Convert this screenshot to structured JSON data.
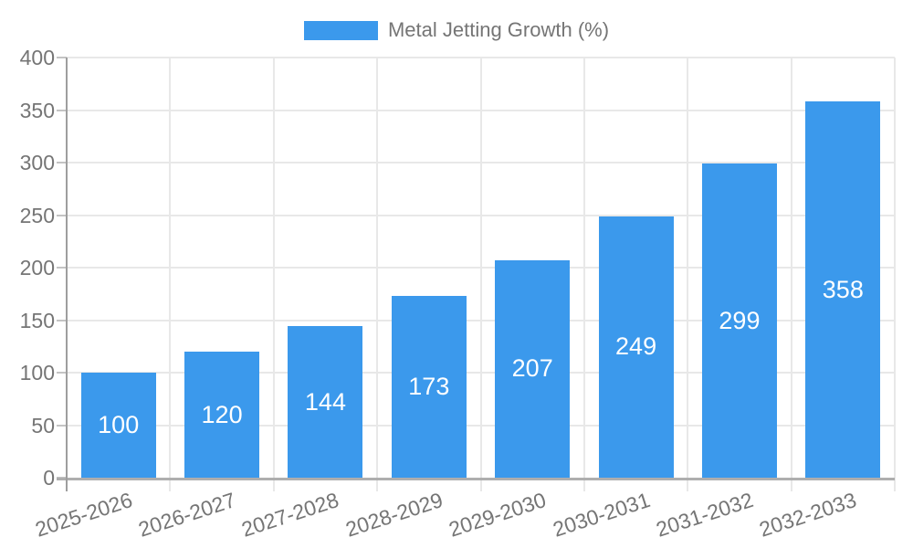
{
  "legend": {
    "label": "Metal Jetting Growth (%)"
  },
  "colors": {
    "bar": "#3b99ec",
    "axis_text": "#757575",
    "value_label": "#ffffff",
    "gridline": "#e8e8e8",
    "tick": "#c4c4c4",
    "axis_line_y": "#9e9e9e",
    "axis_line_x": "#aeaeae",
    "background": "#ffffff"
  },
  "chart_data": {
    "type": "bar",
    "title": "",
    "series_name": "Metal Jetting Growth (%)",
    "categories": [
      "2025-2026",
      "2026-2027",
      "2027-2028",
      "2028-2029",
      "2029-2030",
      "2030-2031",
      "2031-2032",
      "2032-2033"
    ],
    "values": [
      100,
      120,
      144,
      173,
      207,
      249,
      299,
      358
    ],
    "value_labels_shown": true,
    "value_label_position": "inside-center",
    "xlabel": "",
    "ylabel": "",
    "ylim": [
      0,
      400
    ],
    "yticks": [
      0,
      50,
      100,
      150,
      200,
      250,
      300,
      350,
      400
    ],
    "grid": true,
    "legend_position": "top-center",
    "x_tick_rotation_deg": -18
  }
}
